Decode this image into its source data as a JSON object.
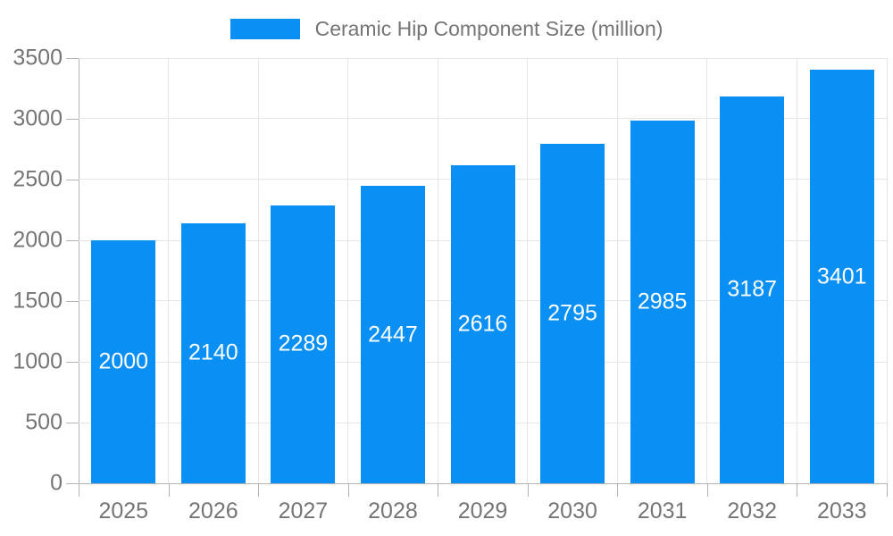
{
  "chart_data": {
    "type": "bar",
    "title": "",
    "categories": [
      "2025",
      "2026",
      "2027",
      "2028",
      "2029",
      "2030",
      "2031",
      "2032",
      "2033"
    ],
    "series": [
      {
        "name": "Ceramic Hip Component Size (million)",
        "values": [
          2000,
          2140,
          2289,
          2447,
          2616,
          2795,
          2985,
          3187,
          3401
        ]
      }
    ],
    "value_labels": [
      "2000",
      "2140",
      "2289",
      "2447",
      "2616",
      "2795",
      "2985",
      "3187",
      "3401"
    ],
    "xlabel": "",
    "ylabel": "",
    "ylim": [
      0,
      3500
    ],
    "ytick_step": 500,
    "yticks": [
      0,
      500,
      1000,
      1500,
      2000,
      2500,
      3000,
      3500
    ],
    "grid": true,
    "legend_position": "top",
    "legend_label": "Ceramic Hip Component Size (million)",
    "colors": {
      "bar": "#0a90f5",
      "value_label_text": "#ffffff",
      "axis_line": "#b3b3b3",
      "gridline": "#e6e6e6",
      "axis_text": "#757575",
      "background": "#ffffff"
    }
  }
}
